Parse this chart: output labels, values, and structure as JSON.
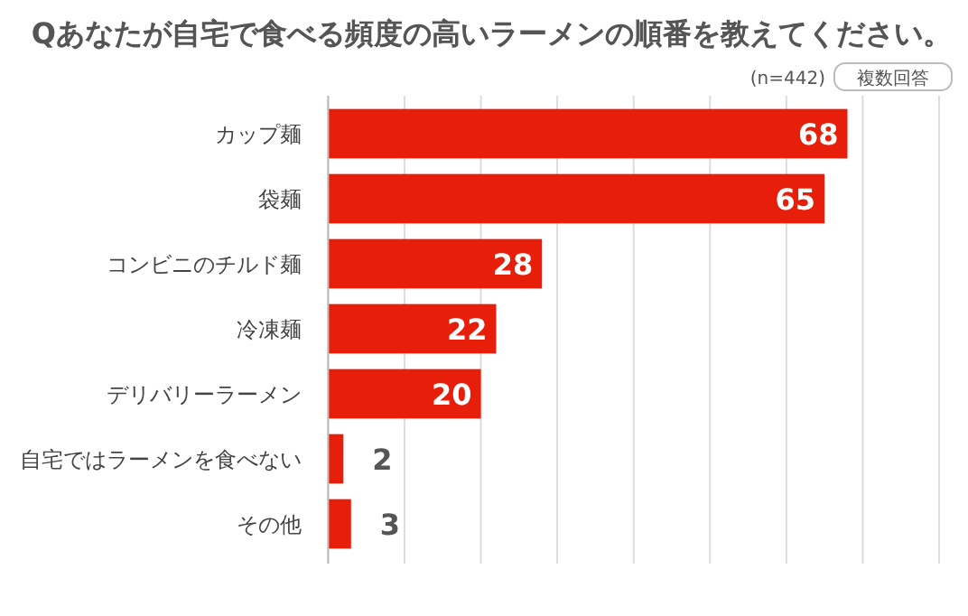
{
  "chart_data": {
    "type": "bar",
    "orientation": "horizontal",
    "title": "Qあなたが自宅で食べる頻度の高いラーメンの順番を教えてください。",
    "annotations": [
      "(n=442)",
      "複数回答"
    ],
    "categories": [
      "カップ麺",
      "袋麺",
      "コンビニのチルド麺",
      "冷凍麺",
      "デリバリーラーメン",
      "自宅ではラーメンを食べない",
      "その他"
    ],
    "values": [
      68,
      65,
      28,
      22,
      20,
      2,
      3
    ],
    "color": "#e61e0a",
    "xlim": [
      0,
      80
    ],
    "xticks": [
      {
        "value": 0,
        "label": null
      },
      {
        "value": 10,
        "label": null
      },
      {
        "value": 20,
        "label": null
      },
      {
        "value": 30,
        "label": null
      },
      {
        "value": 40,
        "label": null
      },
      {
        "value": 50,
        "label": null
      },
      {
        "value": 60,
        "label": null
      },
      {
        "value": 70,
        "label": null
      },
      {
        "value": 80,
        "label": null
      }
    ],
    "tick_labels": "y",
    "grid": "x",
    "data_labels": true
  }
}
